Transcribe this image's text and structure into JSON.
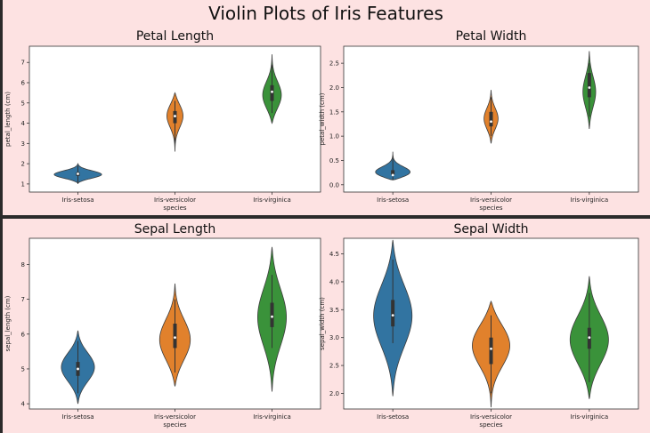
{
  "figure": {
    "title": "Violin Plots of Iris Features",
    "background": "#fde2e2",
    "panel_background": "#ffffff",
    "series_colors": {
      "Iris-setosa": "#3274a1",
      "Iris-versicolor": "#e1812c",
      "Iris-virginica": "#3a923a"
    }
  },
  "chart_data": [
    {
      "type": "violin",
      "title": "Petal Length",
      "xlabel": "species",
      "ylabel": "petal_length (cm)",
      "categories": [
        "Iris-setosa",
        "Iris-versicolor",
        "Iris-virginica"
      ],
      "ylim": [
        0.6,
        7.8
      ],
      "yticks": [
        1,
        2,
        3,
        4,
        5,
        6,
        7
      ],
      "series": [
        {
          "name": "Iris-setosa",
          "color": "#3274a1",
          "min": 1.0,
          "q1": 1.4,
          "median": 1.5,
          "q3": 1.575,
          "max": 1.9,
          "kde_low": 1.05,
          "kde_high": 2.0,
          "bulge_at": 1.45,
          "bulge_width": 1.0
        },
        {
          "name": "Iris-versicolor",
          "color": "#e1812c",
          "min": 3.0,
          "q1": 4.0,
          "median": 4.35,
          "q3": 4.6,
          "max": 5.1,
          "kde_low": 2.6,
          "kde_high": 5.5,
          "bulge_at": 4.45,
          "bulge_width": 0.35
        },
        {
          "name": "Iris-virginica",
          "color": "#3a923a",
          "min": 4.5,
          "q1": 5.1,
          "median": 5.55,
          "q3": 5.875,
          "max": 6.9,
          "kde_low": 4.0,
          "kde_high": 7.4,
          "bulge_at": 5.3,
          "bulge_width": 0.4
        }
      ]
    },
    {
      "type": "violin",
      "title": "Petal Width",
      "xlabel": "species",
      "ylabel": "petal_width (cm)",
      "categories": [
        "Iris-setosa",
        "Iris-versicolor",
        "Iris-virginica"
      ],
      "ylim": [
        -0.15,
        2.85
      ],
      "yticks": [
        0.0,
        0.5,
        1.0,
        1.5,
        2.0,
        2.5
      ],
      "series": [
        {
          "name": "Iris-setosa",
          "color": "#3274a1",
          "min": 0.1,
          "q1": 0.2,
          "median": 0.2,
          "q3": 0.3,
          "max": 0.6,
          "kde_low": 0.1,
          "kde_high": 0.68,
          "bulge_at": 0.22,
          "bulge_width": 1.0
        },
        {
          "name": "Iris-versicolor",
          "color": "#e1812c",
          "min": 1.0,
          "q1": 1.2,
          "median": 1.3,
          "q3": 1.5,
          "max": 1.8,
          "kde_low": 0.85,
          "kde_high": 1.95,
          "bulge_at": 1.35,
          "bulge_width": 0.33
        },
        {
          "name": "Iris-virginica",
          "color": "#3a923a",
          "min": 1.4,
          "q1": 1.8,
          "median": 2.0,
          "q3": 2.3,
          "max": 2.5,
          "kde_low": 1.15,
          "kde_high": 2.75,
          "bulge_at": 1.9,
          "bulge_width": 0.3
        }
      ]
    },
    {
      "type": "violin",
      "title": "Sepal Length",
      "xlabel": "species",
      "ylabel": "sepal_length (cm)",
      "categories": [
        "Iris-setosa",
        "Iris-versicolor",
        "Iris-virginica"
      ],
      "ylim": [
        3.85,
        8.75
      ],
      "yticks": [
        4,
        5,
        6,
        7,
        8
      ],
      "series": [
        {
          "name": "Iris-setosa",
          "color": "#3274a1",
          "min": 4.3,
          "q1": 4.8,
          "median": 5.0,
          "q3": 5.2,
          "max": 5.8,
          "kde_low": 4.0,
          "kde_high": 6.1,
          "bulge_at": 5.05,
          "bulge_width": 0.6
        },
        {
          "name": "Iris-versicolor",
          "color": "#e1812c",
          "min": 4.9,
          "q1": 5.6,
          "median": 5.9,
          "q3": 6.3,
          "max": 7.0,
          "kde_low": 4.5,
          "kde_high": 7.45,
          "bulge_at": 5.8,
          "bulge_width": 0.56
        },
        {
          "name": "Iris-virginica",
          "color": "#3a923a",
          "min": 5.6,
          "q1": 6.2,
          "median": 6.5,
          "q3": 6.9,
          "max": 7.7,
          "kde_low": 4.35,
          "kde_high": 8.5,
          "bulge_at": 6.5,
          "bulge_width": 0.52
        }
      ]
    },
    {
      "type": "violin",
      "title": "Sepal Width",
      "xlabel": "species",
      "ylabel": "sepal_width (cm)",
      "categories": [
        "Iris-setosa",
        "Iris-versicolor",
        "Iris-virginica"
      ],
      "ylim": [
        1.72,
        4.78
      ],
      "yticks": [
        2.0,
        2.5,
        3.0,
        3.5,
        4.0,
        4.5
      ],
      "series": [
        {
          "name": "Iris-setosa",
          "color": "#3274a1",
          "min": 2.9,
          "q1": 3.2,
          "median": 3.4,
          "q3": 3.675,
          "max": 4.4,
          "kde_low": 1.95,
          "kde_high": 4.75,
          "bulge_at": 3.4,
          "bulge_width": 0.6
        },
        {
          "name": "Iris-versicolor",
          "color": "#e1812c",
          "min": 2.0,
          "q1": 2.525,
          "median": 2.8,
          "q3": 3.0,
          "max": 3.4,
          "kde_low": 1.75,
          "kde_high": 3.65,
          "bulge_at": 2.9,
          "bulge_width": 0.6
        },
        {
          "name": "Iris-virginica",
          "color": "#3a923a",
          "min": 2.2,
          "q1": 2.8,
          "median": 3.0,
          "q3": 3.175,
          "max": 3.8,
          "kde_low": 1.9,
          "kde_high": 4.1,
          "bulge_at": 2.95,
          "bulge_width": 0.6
        }
      ]
    }
  ]
}
